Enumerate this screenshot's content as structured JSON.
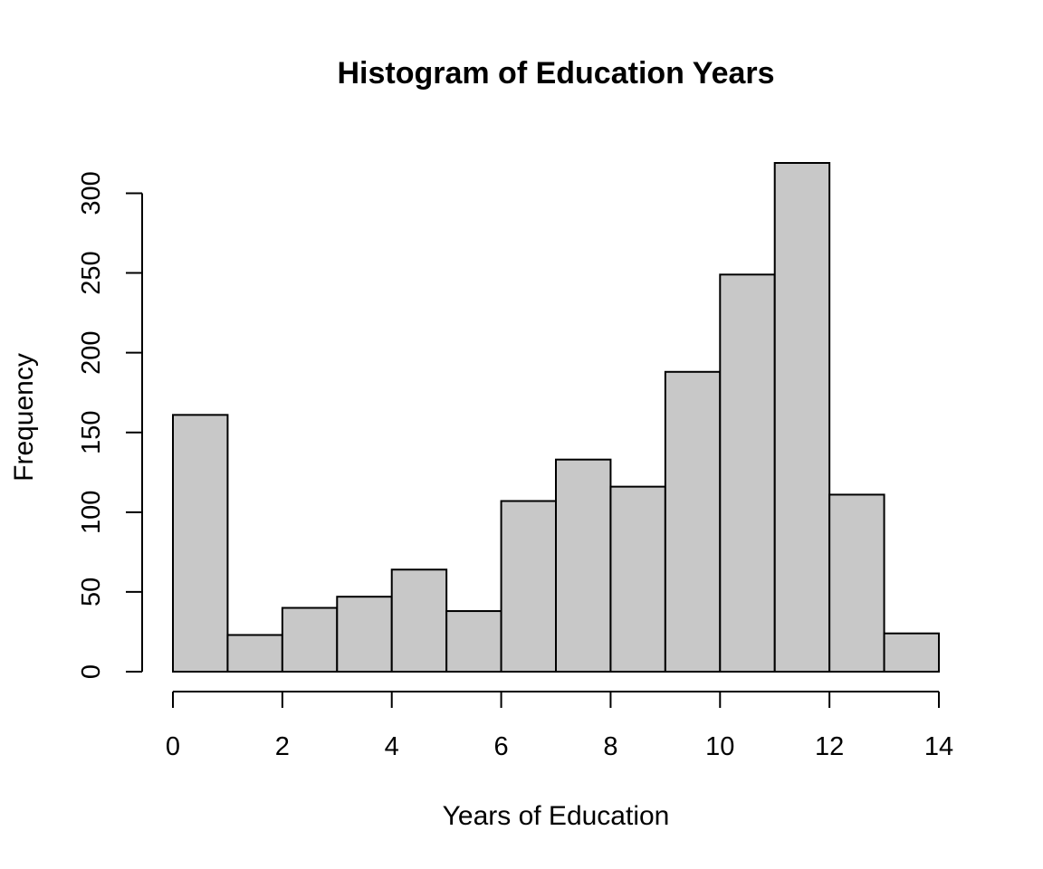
{
  "chart_data": {
    "type": "bar",
    "subtype": "histogram",
    "title": "Histogram of Education Years",
    "xlabel": "Years of Education",
    "ylabel": "Frequency",
    "bins": [
      {
        "start": 0,
        "end": 1,
        "count": 161
      },
      {
        "start": 1,
        "end": 2,
        "count": 23
      },
      {
        "start": 2,
        "end": 3,
        "count": 40
      },
      {
        "start": 3,
        "end": 4,
        "count": 47
      },
      {
        "start": 4,
        "end": 5,
        "count": 64
      },
      {
        "start": 5,
        "end": 6,
        "count": 38
      },
      {
        "start": 6,
        "end": 7,
        "count": 107
      },
      {
        "start": 7,
        "end": 8,
        "count": 133
      },
      {
        "start": 8,
        "end": 9,
        "count": 116
      },
      {
        "start": 9,
        "end": 10,
        "count": 188
      },
      {
        "start": 10,
        "end": 11,
        "count": 249
      },
      {
        "start": 11,
        "end": 12,
        "count": 319
      },
      {
        "start": 12,
        "end": 13,
        "count": 111
      },
      {
        "start": 13,
        "end": 14,
        "count": 24
      }
    ],
    "xlim": [
      0,
      14
    ],
    "ylim": [
      0,
      319
    ],
    "xticks": [
      "0",
      "2",
      "4",
      "6",
      "8",
      "10",
      "12",
      "14"
    ],
    "yticks": [
      "0",
      "50",
      "100",
      "150",
      "200",
      "250",
      "300"
    ],
    "bar_color": "#c8c8c8",
    "edge_color": "#000000",
    "grid": false,
    "legend": "none"
  }
}
